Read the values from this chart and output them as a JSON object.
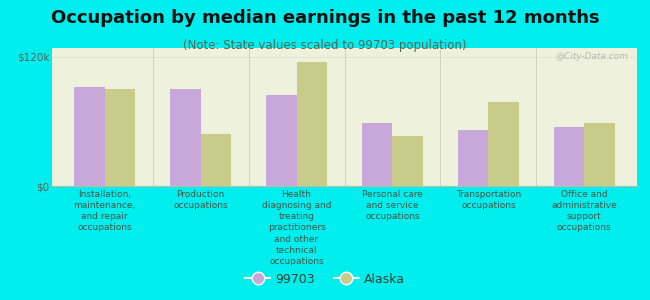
{
  "title": "Occupation by median earnings in the past 12 months",
  "subtitle": "(Note: State values scaled to 99703 population)",
  "background_color": "#00eeee",
  "plot_bg_color": "#eef2dc",
  "bar_color_99703": "#c8a8d8",
  "bar_color_alaska": "#c8cc88",
  "categories": [
    "Installation,\nmaintenance,\nand repair\noccupations",
    "Production\noccupations",
    "Health\ndiagnosing and\ntreating\npractitioners\nand other\ntechnical\noccupations",
    "Personal care\nand service\noccupations",
    "Transportation\noccupations",
    "Office and\nadministrative\nsupport\noccupations"
  ],
  "values_99703": [
    92000,
    90000,
    84000,
    58000,
    52000,
    55000
  ],
  "values_alaska": [
    90000,
    48000,
    115000,
    46000,
    78000,
    58000
  ],
  "ylim": [
    0,
    128000
  ],
  "yticks": [
    0,
    120000
  ],
  "ytick_labels": [
    "$0",
    "$120k"
  ],
  "watermark": "@City-Data.com",
  "legend_labels": [
    "99703",
    "Alaska"
  ],
  "bar_width": 0.32,
  "title_fontsize": 13,
  "subtitle_fontsize": 8.5,
  "tick_fontsize": 7.5,
  "cat_fontsize": 6.5,
  "legend_fontsize": 9
}
